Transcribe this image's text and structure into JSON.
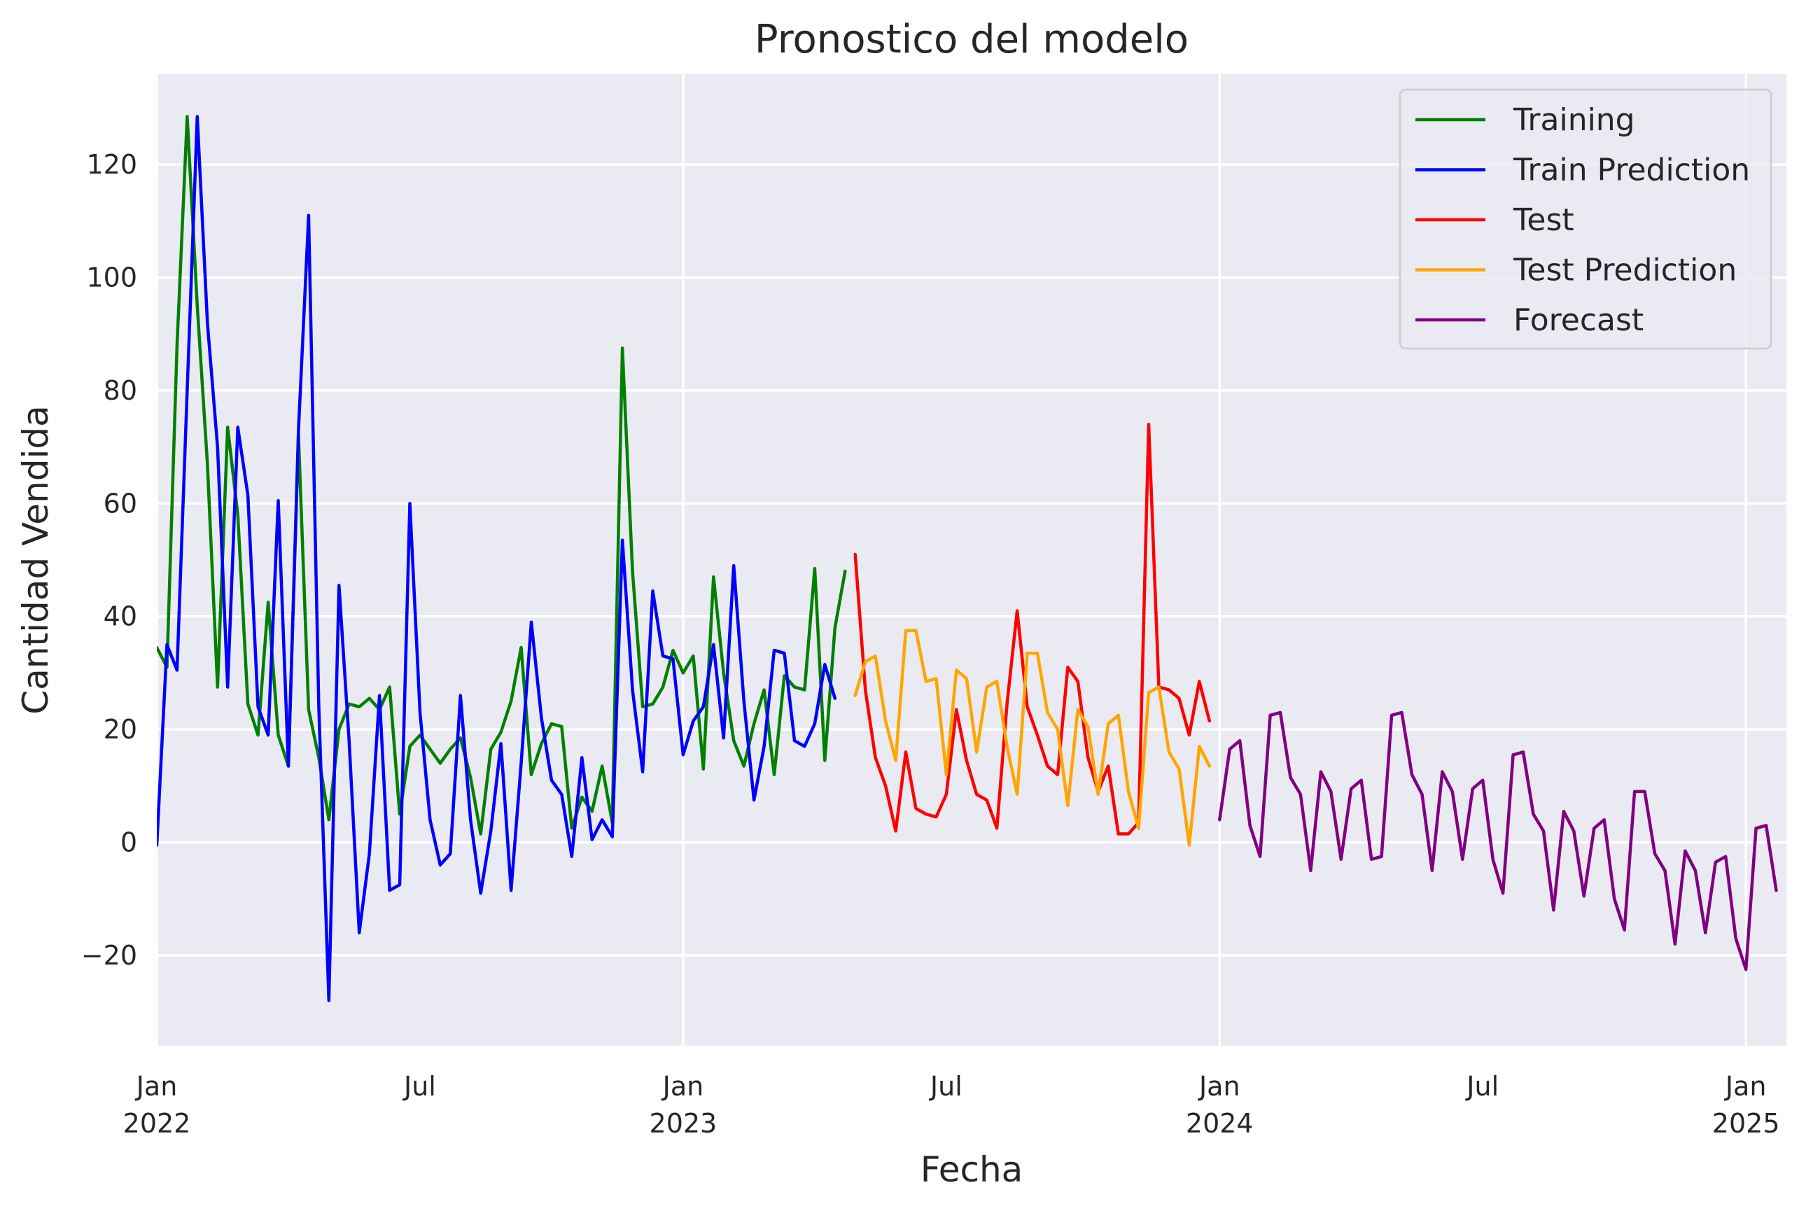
{
  "chart_data": {
    "type": "line",
    "title": "Pronostico del modelo",
    "xlabel": "Fecha",
    "ylabel": "Cantidad Vendida",
    "x_unit": "weeks since 2022-01-02",
    "xlim": [
      0,
      161
    ],
    "ylim": [
      -36,
      136
    ],
    "grid": true,
    "legend_position": "top-right",
    "background": "#eaeaf2",
    "y_ticks": [
      {
        "value": -20,
        "label": "−20"
      },
      {
        "value": 0,
        "label": "0"
      },
      {
        "value": 20,
        "label": "20"
      },
      {
        "value": 40,
        "label": "40"
      },
      {
        "value": 60,
        "label": "60"
      },
      {
        "value": 80,
        "label": "80"
      },
      {
        "value": 100,
        "label": "100"
      },
      {
        "value": 120,
        "label": "120"
      }
    ],
    "x_ticks": [
      {
        "value": 0,
        "label": "Jan",
        "sublabel": "2022",
        "major": true
      },
      {
        "value": 26,
        "label": "Jul",
        "sublabel": "",
        "major": false
      },
      {
        "value": 52,
        "label": "Jan",
        "sublabel": "2023",
        "major": true
      },
      {
        "value": 78,
        "label": "Jul",
        "sublabel": "",
        "major": false
      },
      {
        "value": 105,
        "label": "Jan",
        "sublabel": "2024",
        "major": true
      },
      {
        "value": 131,
        "label": "Jul",
        "sublabel": "",
        "major": false
      },
      {
        "value": 157,
        "label": "Jan",
        "sublabel": "2025",
        "major": true
      }
    ],
    "series": [
      {
        "name": "Training",
        "color": "#008000",
        "x_start": 0,
        "values": [
          34.5,
          31,
          88,
          128.5,
          95,
          67,
          27.5,
          73.5,
          58,
          24.5,
          19,
          42.5,
          19,
          13.5,
          72,
          23.5,
          15,
          4,
          20,
          24.5,
          24,
          25.5,
          23.5,
          27.5,
          5,
          17,
          19,
          16.5,
          14,
          16.5,
          18.5,
          11.5,
          1.5,
          16.5,
          19.5,
          25,
          34.5,
          12,
          17.5,
          21,
          20.5,
          2.5,
          8,
          5.5,
          13.5,
          3.5,
          87.5,
          48,
          24,
          24.5,
          27.5,
          34,
          30,
          33,
          13,
          47,
          30,
          18,
          13.5,
          21,
          27,
          12,
          29.5,
          27.5,
          27,
          48.5,
          14.5,
          38,
          48
        ]
      },
      {
        "name": "Train Prediction",
        "color": "#0000ff",
        "x_start": 0,
        "values": [
          -0.5,
          35,
          30.5,
          80,
          128.5,
          92,
          70,
          27.5,
          73.5,
          61.5,
          24,
          19,
          60.5,
          13.5,
          73,
          111,
          24,
          -28,
          45.5,
          18,
          -16,
          -2,
          26,
          -8.5,
          -7.5,
          60,
          23,
          4,
          -4,
          -2,
          26,
          4,
          -9,
          2,
          17.5,
          -8.5,
          14,
          39,
          22,
          11,
          8.5,
          -2.5,
          15,
          0.5,
          4,
          1,
          53.5,
          27,
          12.5,
          44.5,
          33,
          32.5,
          15.5,
          21.5,
          24,
          35,
          18.5,
          49,
          25,
          7.5,
          17,
          34,
          33.5,
          18,
          17,
          21,
          31.5,
          25.5
        ]
      },
      {
        "name": "Test",
        "color": "#ff0000",
        "x_start": 69,
        "values": [
          51,
          27,
          15,
          10,
          2,
          16,
          6,
          5,
          4.5,
          8.5,
          23.5,
          14.5,
          8.5,
          7.5,
          2.5,
          24.5,
          41,
          24,
          19,
          13.5,
          12,
          31,
          28.5,
          15,
          9,
          13.5,
          1.5,
          1.5,
          3.5,
          74,
          27.5,
          27,
          25.5,
          19,
          28.5,
          21.5
        ]
      },
      {
        "name": "Test Prediction",
        "color": "#ffa500",
        "x_start": 69,
        "values": [
          26,
          32,
          33,
          21.5,
          14.5,
          37.5,
          37.5,
          28.5,
          29,
          12,
          30.5,
          29,
          16,
          27.5,
          28.5,
          17,
          8.5,
          33.5,
          33.5,
          23,
          20,
          6.5,
          23.5,
          20.5,
          8.5,
          21,
          22.5,
          9,
          2.5,
          26.5,
          27.5,
          16,
          13,
          -0.5,
          17,
          13.5
        ]
      },
      {
        "name": "Forecast",
        "color": "#800080",
        "x_start": 105,
        "values": [
          4,
          16.5,
          18,
          3,
          -2.5,
          22.5,
          23,
          11.5,
          8.5,
          -5,
          12.5,
          9,
          -3,
          9.5,
          11,
          -3,
          -2.5,
          22.5,
          23,
          12,
          8.5,
          -5,
          12.5,
          9,
          -3,
          9.5,
          11,
          -3,
          -9,
          15.5,
          16,
          5,
          2,
          -12,
          5.5,
          2,
          -9.5,
          2.5,
          4,
          -10,
          -15.5,
          9,
          9,
          -2,
          -5,
          -18,
          -1.5,
          -5,
          -16,
          -3.5,
          -2.5,
          -17,
          -22.5,
          2.5,
          3,
          -8.5
        ]
      }
    ]
  }
}
